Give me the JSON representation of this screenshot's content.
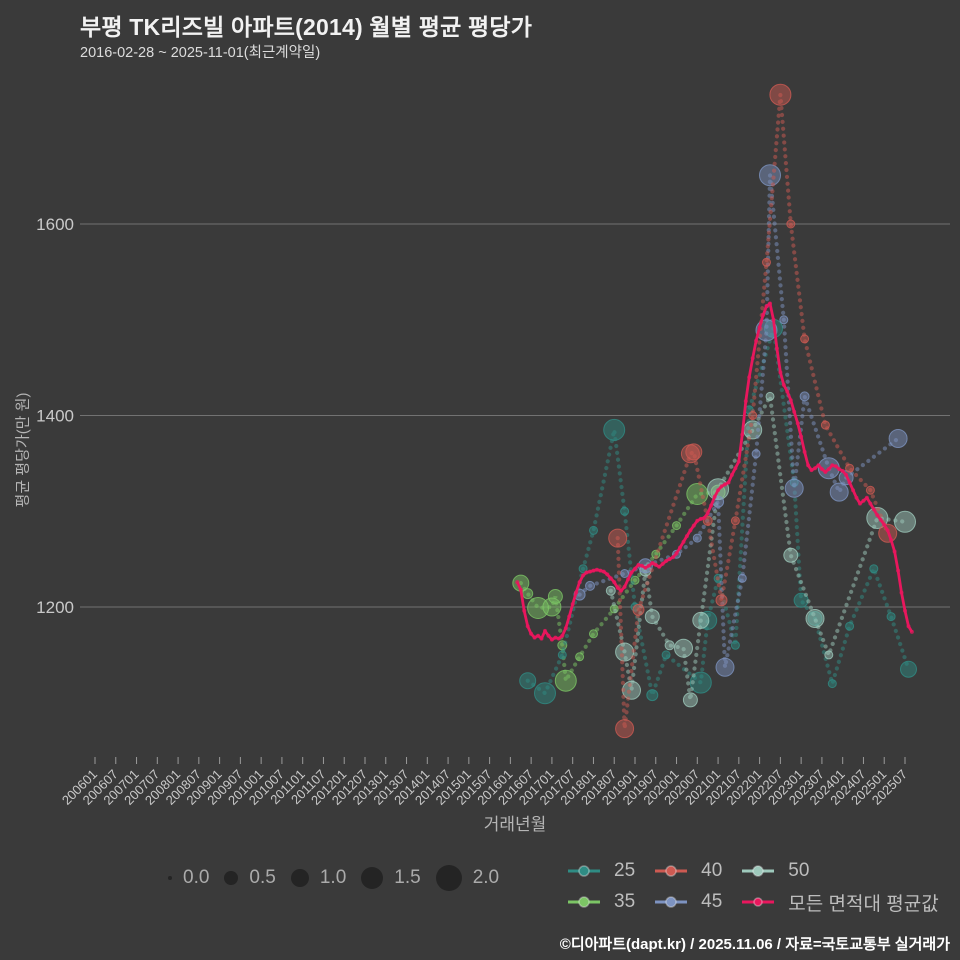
{
  "title": "부평 TK리즈빌 아파트(2014) 월별 평균 평당가",
  "subtitle": "2016-02-28 ~ 2025-11-01(최근계약일)",
  "footer": "©디아파트(dapt.kr) / 2025.11.06 / 자료=국토교통부 실거래가",
  "colors": {
    "background": "#3a3a3a",
    "gridline": "#a0a0a0",
    "tick_text": "#c9c9c9",
    "title_text": "#f2f2f2",
    "size_circle": "#242424"
  },
  "legend": {
    "sizes": [
      {
        "label": "0.0"
      },
      {
        "label": "0.5"
      },
      {
        "label": "1.0"
      },
      {
        "label": "1.5"
      },
      {
        "label": "2.0"
      }
    ],
    "series": [
      {
        "key": "25",
        "label": "25",
        "color": "#2f8c84"
      },
      {
        "key": "40",
        "label": "40",
        "color": "#cd5a52"
      },
      {
        "key": "50",
        "label": "50",
        "color": "#9ec9bc"
      },
      {
        "key": "35",
        "label": "35",
        "color": "#7cc565"
      },
      {
        "key": "45",
        "label": "45",
        "color": "#7d93c1"
      },
      {
        "key": "avg",
        "label": "모든 면적대 평균값",
        "color": "#e8175d"
      }
    ]
  },
  "chart_data": {
    "type": "scatter",
    "title": "부평 TK리즈빌 아파트(2014) 월별 평균 평당가",
    "xlabel": "거래년월",
    "ylabel": "평균 평당가(만 원)",
    "y_ticks": [
      1200,
      1400,
      1600
    ],
    "ylim": [
      1040,
      1745
    ],
    "x_ticks": [
      "200601",
      "200607",
      "200701",
      "200707",
      "200801",
      "200807",
      "200901",
      "200907",
      "201001",
      "201007",
      "201101",
      "201107",
      "201201",
      "201207",
      "201301",
      "201307",
      "201401",
      "201407",
      "201501",
      "201507",
      "201601",
      "201607",
      "201701",
      "201707",
      "201801",
      "201807",
      "201901",
      "201907",
      "202001",
      "202007",
      "202101",
      "202107",
      "202201",
      "202207",
      "202301",
      "202307",
      "202401",
      "202407",
      "202501",
      "202507"
    ],
    "size_scale": [
      0.0,
      0.5,
      1.0,
      1.5,
      2.0
    ],
    "series": [
      {
        "name": "35",
        "color": "#7cc565",
        "points": [
          [
            "201604",
            1225,
            1.0
          ],
          [
            "201606",
            1214,
            0.4
          ],
          [
            "201609",
            1199,
            1.5
          ],
          [
            "201701",
            1200,
            1.2
          ],
          [
            "201702",
            1211,
            0.8
          ],
          [
            "201704",
            1160,
            0.3
          ],
          [
            "201705",
            1123,
            1.5
          ],
          [
            "201709",
            1148,
            0.2
          ],
          [
            "201801",
            1172,
            0.2
          ],
          [
            "201807",
            1198,
            0.2
          ],
          [
            "201901",
            1228,
            0.2
          ],
          [
            "201907",
            1255,
            0.2
          ],
          [
            "202001",
            1285,
            0.2
          ],
          [
            "202007",
            1318,
            1.5
          ],
          [
            "202101",
            1320,
            0.8
          ]
        ]
      },
      {
        "name": "25",
        "color": "#2f8c84",
        "points": [
          [
            "201606",
            1123,
            1.0
          ],
          [
            "201611",
            1110,
            1.5
          ],
          [
            "201704",
            1150,
            0.2
          ],
          [
            "201710",
            1240,
            0.2
          ],
          [
            "201801",
            1280,
            0.2
          ],
          [
            "201807",
            1385,
            1.5
          ],
          [
            "201810",
            1300,
            0.2
          ],
          [
            "201901",
            1200,
            0.2
          ],
          [
            "201906",
            1108,
            0.5
          ],
          [
            "201910",
            1150,
            0.2
          ],
          [
            "202008",
            1121,
            1.5
          ],
          [
            "202010",
            1186,
            1.2
          ],
          [
            "202101",
            1230,
            0.2
          ],
          [
            "202106",
            1160,
            0.2
          ],
          [
            "202110",
            1406,
            0.2
          ],
          [
            "202205",
            1491,
            1.2
          ],
          [
            "202211",
            1330,
            0.2
          ],
          [
            "202301",
            1207,
            0.8
          ],
          [
            "202305",
            1188,
            0.8
          ],
          [
            "202310",
            1120,
            0.2
          ],
          [
            "202403",
            1180,
            0.2
          ],
          [
            "202410",
            1240,
            0.2
          ],
          [
            "202503",
            1190,
            0.2
          ],
          [
            "202508",
            1135,
            1.0
          ]
        ]
      },
      {
        "name": "50",
        "color": "#9ec9bc",
        "points": [
          [
            "201806",
            1217,
            0.3
          ],
          [
            "201810",
            1153,
            1.2
          ],
          [
            "201812",
            1113,
            1.2
          ],
          [
            "201904",
            1238,
            0.5
          ],
          [
            "201906",
            1190,
            0.8
          ],
          [
            "201911",
            1160,
            0.3
          ],
          [
            "202003",
            1157,
            1.2
          ],
          [
            "202005",
            1103,
            0.8
          ],
          [
            "202008",
            1186,
            1.0
          ],
          [
            "202101",
            1323,
            1.5
          ],
          [
            "202111",
            1385,
            1.2
          ],
          [
            "202204",
            1420,
            0.2
          ],
          [
            "202210",
            1254,
            0.8
          ],
          [
            "202305",
            1188,
            1.2
          ],
          [
            "202309",
            1150,
            0.2
          ],
          [
            "202411",
            1293,
            1.5
          ],
          [
            "202507",
            1289,
            1.5
          ]
        ]
      },
      {
        "name": "45",
        "color": "#7d93c1",
        "points": [
          [
            "201709",
            1213,
            0.5
          ],
          [
            "201712",
            1222,
            0.3
          ],
          [
            "201810",
            1235,
            0.2
          ],
          [
            "201904",
            1243,
            0.8
          ],
          [
            "202001",
            1255,
            0.2
          ],
          [
            "202007",
            1272,
            0.2
          ],
          [
            "202101",
            1310,
            0.5
          ],
          [
            "202103",
            1137,
            1.2
          ],
          [
            "202108",
            1230,
            0.2
          ],
          [
            "202112",
            1360,
            0.2
          ],
          [
            "202203",
            1489,
            1.5
          ],
          [
            "202204",
            1651,
            1.5
          ],
          [
            "202208",
            1500,
            0.2
          ],
          [
            "202211",
            1324,
            1.2
          ],
          [
            "202302",
            1420,
            0.3
          ],
          [
            "202309",
            1345,
            1.5
          ],
          [
            "202312",
            1320,
            1.2
          ],
          [
            "202402",
            1335,
            0.8
          ],
          [
            "202505",
            1376,
            1.2
          ]
        ]
      },
      {
        "name": "40",
        "color": "#cd5a52",
        "points": [
          [
            "201808",
            1272,
            1.2
          ],
          [
            "201810",
            1073,
            1.2
          ],
          [
            "201902",
            1197,
            0.5
          ],
          [
            "202005",
            1360,
            1.2
          ],
          [
            "202006",
            1362,
            1.0
          ],
          [
            "202010",
            1290,
            0.3
          ],
          [
            "202102",
            1207,
            0.5
          ],
          [
            "202106",
            1290,
            0.2
          ],
          [
            "202111",
            1400,
            0.2
          ],
          [
            "202203",
            1560,
            0.2
          ],
          [
            "202207",
            1735,
            1.5
          ],
          [
            "202210",
            1600,
            0.2
          ],
          [
            "202302",
            1480,
            0.2
          ],
          [
            "202308",
            1390,
            0.2
          ],
          [
            "202403",
            1345,
            0.2
          ],
          [
            "202409",
            1322,
            0.2
          ],
          [
            "202502",
            1277,
            1.2
          ]
        ]
      }
    ],
    "avg_series": {
      "name": "모든 면적대 평균값",
      "color": "#e8175d",
      "start": "201603",
      "cadence": "monthly",
      "values": [
        1226,
        1218,
        1196,
        1180,
        1172,
        1168,
        1170,
        1167,
        1175,
        1170,
        1166,
        1168,
        1167,
        1170,
        1178,
        1190,
        1203,
        1215,
        1226,
        1233,
        1236,
        1237,
        1238,
        1239,
        1238,
        1237,
        1234,
        1230,
        1226,
        1220,
        1217,
        1221,
        1229,
        1236,
        1240,
        1244,
        1243,
        1241,
        1243,
        1246,
        1244,
        1242,
        1245,
        1248,
        1250,
        1252,
        1256,
        1262,
        1268,
        1274,
        1280,
        1285,
        1290,
        1292,
        1293,
        1298,
        1306,
        1315,
        1322,
        1326,
        1328,
        1330,
        1338,
        1345,
        1352,
        1380,
        1415,
        1440,
        1460,
        1478,
        1492,
        1505,
        1514,
        1517,
        1500,
        1470,
        1445,
        1432,
        1425,
        1416,
        1404,
        1392,
        1378,
        1362,
        1348,
        1343,
        1345,
        1348,
        1344,
        1341,
        1344,
        1348,
        1347,
        1344,
        1342,
        1338,
        1330,
        1322,
        1314,
        1308,
        1311,
        1314,
        1308,
        1302,
        1296,
        1291,
        1286,
        1280,
        1270,
        1258,
        1238,
        1215,
        1196,
        1180,
        1174
      ]
    }
  }
}
